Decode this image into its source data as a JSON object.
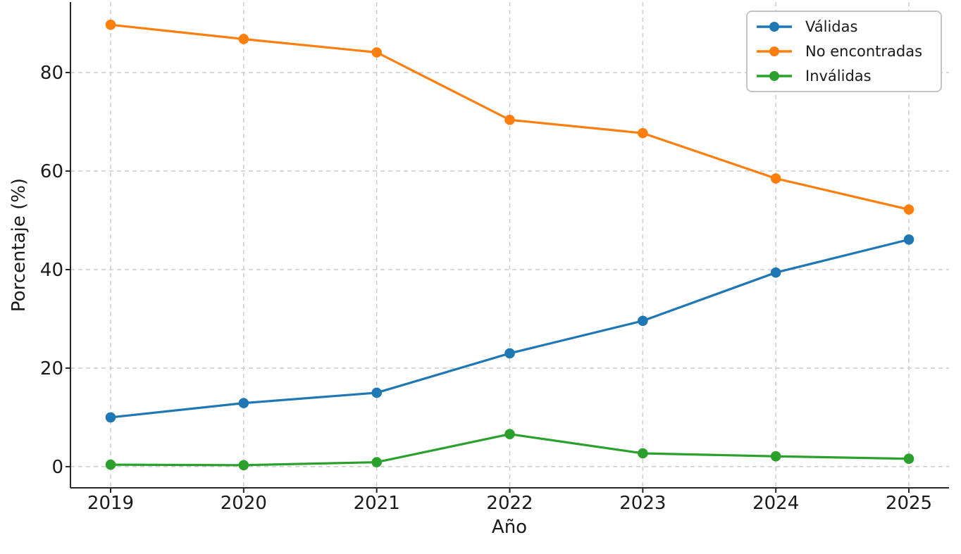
{
  "chart_data": {
    "type": "line",
    "title": "",
    "xlabel": "Año",
    "ylabel": "Porcentaje (%)",
    "x": [
      "2019",
      "2020",
      "2021",
      "2022",
      "2023",
      "2024",
      "2025"
    ],
    "yticks": [
      0,
      20,
      40,
      60,
      80
    ],
    "ylim": [
      -4.3,
      94.3
    ],
    "grid": true,
    "grid_style": "dashed",
    "legend_position": "upper-right",
    "series": [
      {
        "name": "Válidas",
        "color": "#1f77b4",
        "marker": "circle",
        "values": [
          10.0,
          12.9,
          15.0,
          23.0,
          29.6,
          39.4,
          46.1
        ]
      },
      {
        "name": "No encontradas",
        "color": "#ff7f0e",
        "marker": "circle",
        "values": [
          89.7,
          86.8,
          84.1,
          70.4,
          67.7,
          58.5,
          52.2
        ]
      },
      {
        "name": "Inválidas",
        "color": "#2ca02c",
        "marker": "circle",
        "values": [
          0.4,
          0.3,
          0.9,
          6.6,
          2.7,
          2.1,
          1.6
        ]
      }
    ]
  },
  "colors": {
    "background": "#ffffff",
    "text": "#1a1a1a",
    "grid": "#cccccc",
    "spine": "#262626",
    "legend_border": "#c4c4c4"
  }
}
